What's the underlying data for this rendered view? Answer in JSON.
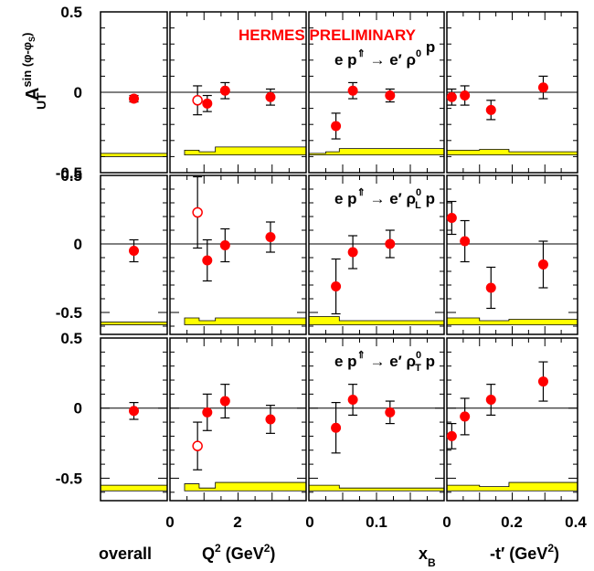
{
  "colors": {
    "point": "#ff0000",
    "band": "#ffff00",
    "frame": "#000000",
    "label_red": "#ff0000"
  },
  "labels": {
    "preliminary": "HERMES PRELIMINARY",
    "y_axis_main": "A",
    "y_axis_sup": "sin (φ-φ",
    "y_axis_sup_sub": "S",
    "y_axis_sup_close": ")",
    "y_axis_sub": "UT",
    "x_overall": "overall",
    "x_q2": "Q",
    "x_q2_sup": "2",
    "x_q2_unit_open": " (GeV",
    "x_q2_unit_sup": "2",
    "x_q2_unit_close": ")",
    "x_xb": "x",
    "x_xb_sub": "B",
    "x_t": "-t′ (GeV",
    "x_t_sup": "2",
    "x_t_close": ")"
  },
  "reactions": [
    {
      "pre": "e p",
      "arrow": "⇑",
      "mid": " → e′ ρ",
      "sup": "0",
      "sub": "",
      "post": " p"
    },
    {
      "pre": "e p",
      "arrow": "⇑",
      "mid": " → e′ ρ",
      "sup": "0",
      "sub": "L",
      "post": " p"
    },
    {
      "pre": "e p",
      "arrow": "⇑",
      "mid": " → e′ ρ",
      "sup": "0",
      "sub": "T",
      "post": " p"
    }
  ],
  "chart_data": {
    "type": "scatter",
    "ylabel": "A_UT^sin(φ-φS)",
    "columns": [
      {
        "key": "overall",
        "label": "overall",
        "xlim": [
          0,
          1
        ],
        "ticks": []
      },
      {
        "key": "q2",
        "label": "Q² (GeV²)",
        "xlim": [
          0,
          4.2
        ],
        "ticks": [
          "0",
          "2"
        ]
      },
      {
        "key": "xb",
        "label": "x_B",
        "xlim": [
          0,
          0.2
        ],
        "ticks": [
          "0",
          "0.1"
        ]
      },
      {
        "key": "t",
        "label": "-t′ (GeV²)",
        "xlim": [
          0,
          0.4
        ],
        "ticks": [
          "0",
          "0.2",
          "0.4"
        ]
      }
    ],
    "rows": [
      {
        "reaction": "e p⇑ → e′ ρ⁰ p",
        "ylim": [
          -0.5,
          0.5
        ],
        "yticks": [
          {
            "v": 0.5,
            "t": "0.5"
          },
          {
            "v": 0,
            "t": "0"
          },
          {
            "v": -0.5,
            "t": "-0.5"
          }
        ],
        "overall": {
          "x": [
            0.5
          ],
          "y": [
            -0.04
          ],
          "err": [
            0.02
          ],
          "band": [
            -0.38,
            -0.4
          ]
        },
        "q2": {
          "x": [
            1.15,
            1.7,
            3.1
          ],
          "y": [
            -0.07,
            0.01,
            -0.03
          ],
          "err": [
            0.05,
            0.05,
            0.05
          ],
          "open": {
            "x": 0.85,
            "y": -0.05,
            "err": 0.09
          },
          "band": {
            "x": [
              0.45,
              0.9,
              1.4,
              4.2
            ],
            "top": [
              -0.36,
              -0.37,
              -0.34,
              -0.34
            ],
            "bottom": -0.39
          }
        },
        "xb": {
          "x": [
            0.04,
            0.065,
            0.12
          ],
          "y": [
            -0.21,
            0.01,
            -0.02
          ],
          "err": [
            0.08,
            0.05,
            0.04
          ],
          "band": {
            "x": [
              0,
              0.025,
              0.045,
              0.2
            ],
            "top": [
              -0.38,
              -0.37,
              -0.35,
              -0.35
            ],
            "bottom": -0.39
          }
        },
        "t": {
          "x": [
            0.015,
            0.055,
            0.135,
            0.295
          ],
          "y": [
            -0.03,
            -0.02,
            -0.11,
            0.03
          ],
          "err": [
            0.05,
            0.06,
            0.06,
            0.07
          ],
          "band": {
            "x": [
              0,
              0.1,
              0.19,
              0.4
            ],
            "top": [
              -0.36,
              -0.355,
              -0.37,
              -0.37
            ],
            "bottom": -0.39
          }
        }
      },
      {
        "reaction": "e p⇑ → e′ ρL⁰ p",
        "ylim": [
          -0.66,
          0.5
        ],
        "yticks": [
          {
            "v": 0.5,
            "t": "0.5"
          },
          {
            "v": 0,
            "t": "0"
          },
          {
            "v": -0.5,
            "t": "-0.5"
          }
        ],
        "overall": {
          "x": [
            0.5
          ],
          "y": [
            -0.05
          ],
          "err": [
            0.08
          ],
          "band": [
            -0.57,
            -0.59
          ]
        },
        "q2": {
          "x": [
            1.15,
            1.7,
            3.1
          ],
          "y": [
            -0.12,
            -0.01,
            0.05
          ],
          "err": [
            0.15,
            0.12,
            0.11
          ],
          "open": {
            "x": 0.85,
            "y": 0.23,
            "err": 0.26
          },
          "band": {
            "x": [
              0.45,
              0.9,
              1.4,
              4.2
            ],
            "top": [
              -0.54,
              -0.56,
              -0.54,
              -0.54
            ],
            "bottom": -0.59
          }
        },
        "xb": {
          "x": [
            0.04,
            0.065,
            0.12
          ],
          "y": [
            -0.31,
            -0.06,
            0.0
          ],
          "err": [
            0.2,
            0.12,
            0.1
          ],
          "band": {
            "x": [
              0,
              0.025,
              0.045,
              0.2
            ],
            "top": [
              -0.53,
              -0.53,
              -0.56,
              -0.56
            ],
            "bottom": -0.59
          }
        },
        "t": {
          "x": [
            0.015,
            0.055,
            0.135,
            0.295
          ],
          "y": [
            0.19,
            0.02,
            -0.32,
            -0.15
          ],
          "err": [
            0.12,
            0.15,
            0.15,
            0.17
          ],
          "band": {
            "x": [
              0,
              0.1,
              0.19,
              0.4
            ],
            "top": [
              -0.54,
              -0.56,
              -0.55,
              -0.55
            ],
            "bottom": -0.59
          }
        }
      },
      {
        "reaction": "e p⇑ → e′ ρT⁰ p",
        "ylim": [
          -0.66,
          0.5
        ],
        "yticks": [
          {
            "v": 0.5,
            "t": "0.5"
          },
          {
            "v": 0,
            "t": "0"
          },
          {
            "v": -0.5,
            "t": "-0.5"
          }
        ],
        "overall": {
          "x": [
            0.5
          ],
          "y": [
            -0.02
          ],
          "err": [
            0.06
          ],
          "band": [
            -0.55,
            -0.59
          ]
        },
        "q2": {
          "x": [
            1.15,
            1.7,
            3.1
          ],
          "y": [
            -0.03,
            0.05,
            -0.08
          ],
          "err": [
            0.13,
            0.12,
            0.1
          ],
          "open": {
            "x": 0.85,
            "y": -0.27,
            "err": 0.17
          },
          "band": {
            "x": [
              0.45,
              0.9,
              1.4,
              4.2
            ],
            "top": [
              -0.54,
              -0.57,
              -0.53,
              -0.54
            ],
            "bottom": -0.59
          }
        },
        "xb": {
          "x": [
            0.04,
            0.065,
            0.12
          ],
          "y": [
            -0.14,
            0.06,
            -0.03
          ],
          "err": [
            0.18,
            0.11,
            0.08
          ],
          "band": {
            "x": [
              0,
              0.025,
              0.045,
              0.2
            ],
            "top": [
              -0.55,
              -0.55,
              -0.57,
              -0.54
            ],
            "bottom": -0.59
          }
        },
        "t": {
          "x": [
            0.015,
            0.055,
            0.135,
            0.295
          ],
          "y": [
            -0.2,
            -0.06,
            0.06,
            0.19
          ],
          "err": [
            0.09,
            0.13,
            0.11,
            0.14
          ],
          "band": {
            "x": [
              0,
              0.1,
              0.19,
              0.4
            ],
            "top": [
              -0.55,
              -0.56,
              -0.53,
              -0.5
            ],
            "bottom": -0.59
          }
        }
      }
    ]
  }
}
